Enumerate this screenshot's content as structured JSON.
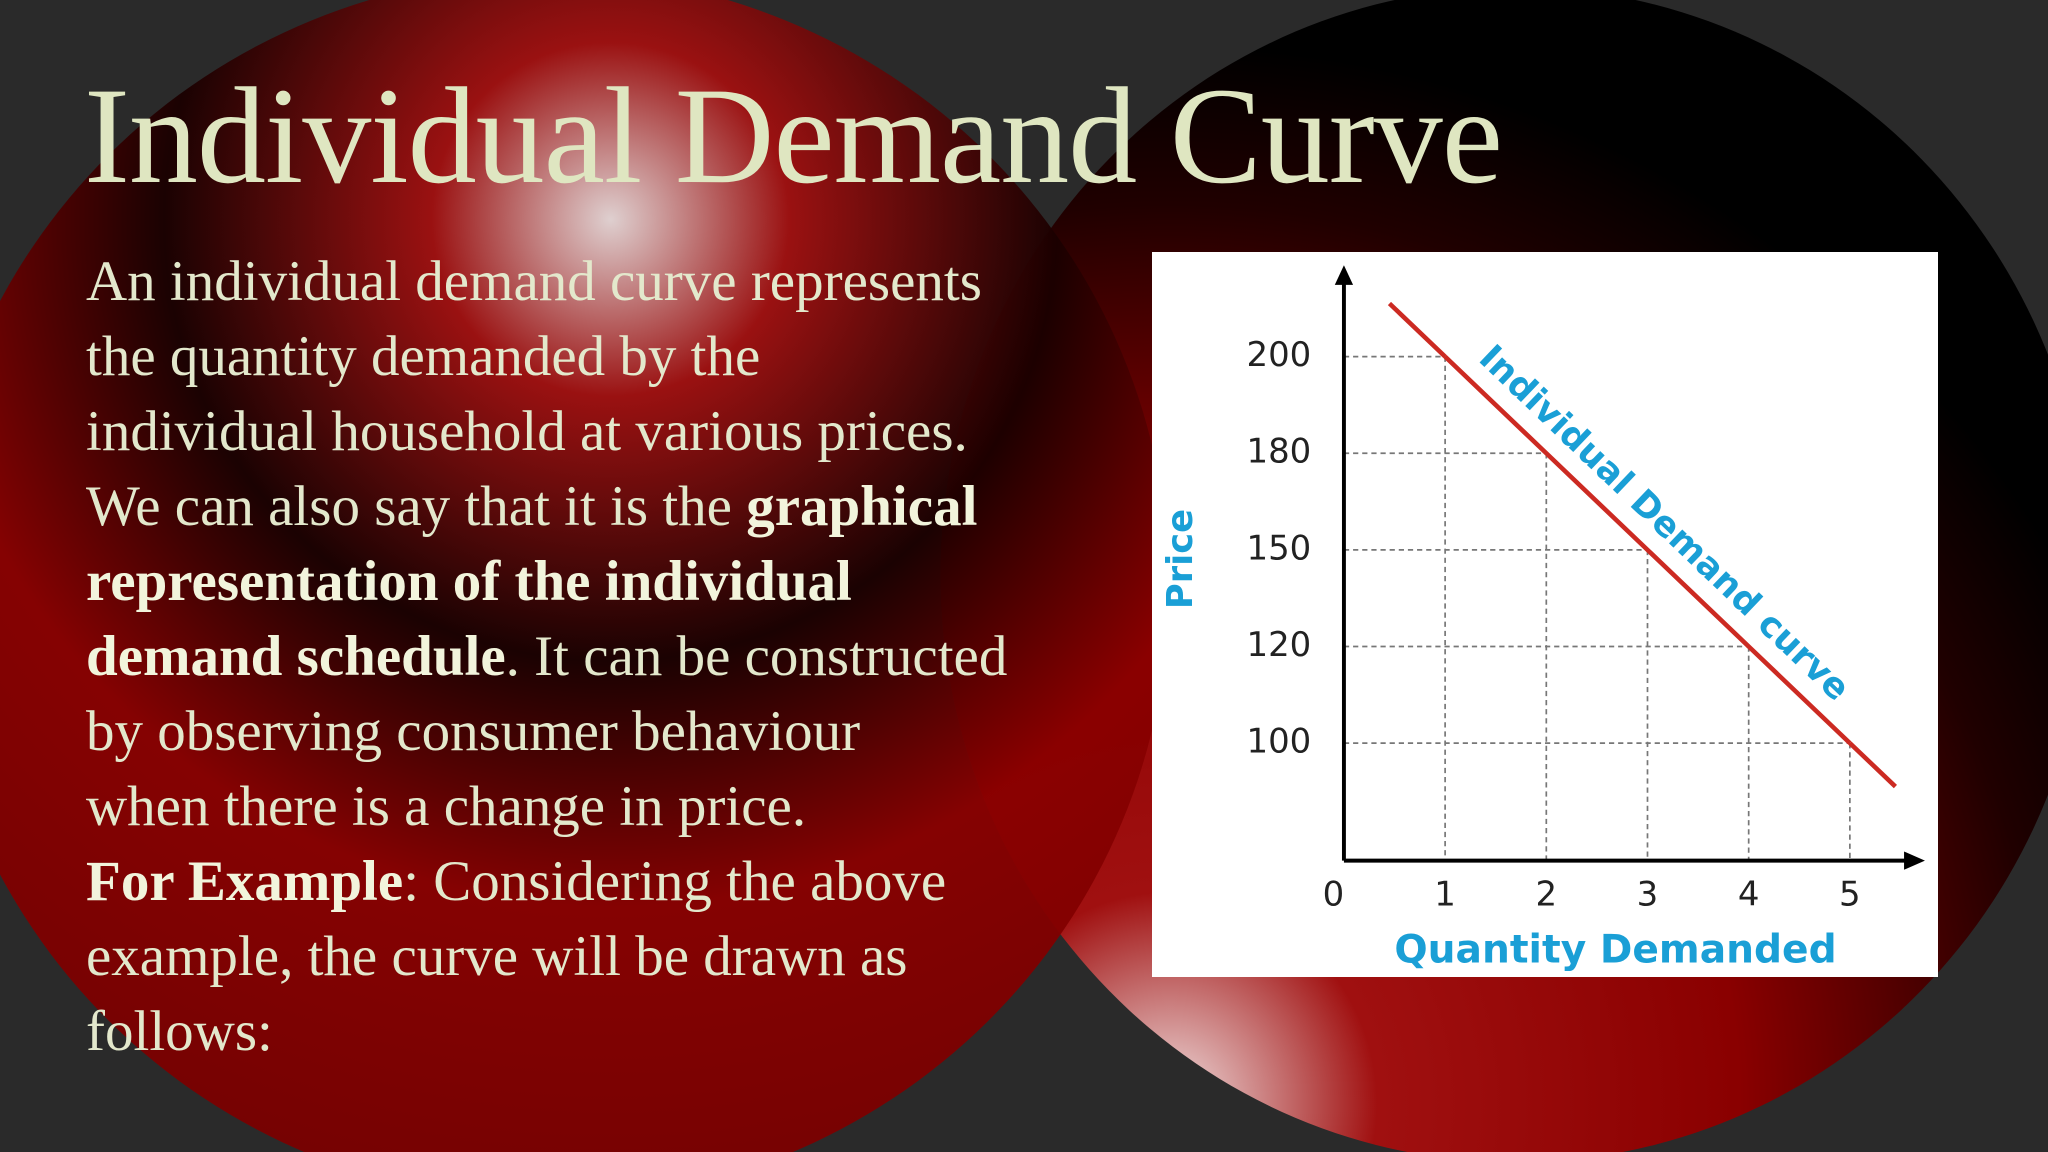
{
  "slide": {
    "title": "Individual Demand Curve",
    "body_lines": [
      [
        {
          "text": "An individual demand curve represents"
        }
      ],
      [
        {
          "text": "the quantity demanded by the"
        }
      ],
      [
        {
          "text": "individual household at various prices."
        }
      ],
      [
        {
          "text": "We can also say that it is the "
        },
        {
          "text": "graphical",
          "bold": true
        }
      ],
      [
        {
          "text": "representation of the individual",
          "bold": true
        }
      ],
      [
        {
          "text": "demand schedule",
          "bold": true
        },
        {
          "text": ". It can be constructed"
        }
      ],
      [
        {
          "text": "by observing consumer behaviour"
        }
      ],
      [
        {
          "text": "when there is a change in price."
        }
      ],
      [
        {
          "text": "For Example",
          "bold": true
        },
        {
          "text": ": Considering the above"
        }
      ],
      [
        {
          "text": "example, the curve will be drawn as"
        }
      ],
      [
        {
          "text": "follows:"
        }
      ]
    ]
  },
  "chart_data": {
    "type": "line",
    "x_label": "Quantity Demanded",
    "y_label": "Price",
    "x": [
      1,
      2,
      3,
      4,
      5
    ],
    "series": [
      {
        "name": "Individual Demand curve",
        "color": "#cc2a22",
        "values": [
          200,
          180,
          150,
          120,
          100
        ]
      }
    ],
    "xlim": [
      0,
      5.5
    ],
    "xticks": [
      0,
      1,
      2,
      3,
      4,
      5
    ],
    "yticks": [
      100,
      120,
      150,
      180,
      200
    ],
    "grid": true
  }
}
